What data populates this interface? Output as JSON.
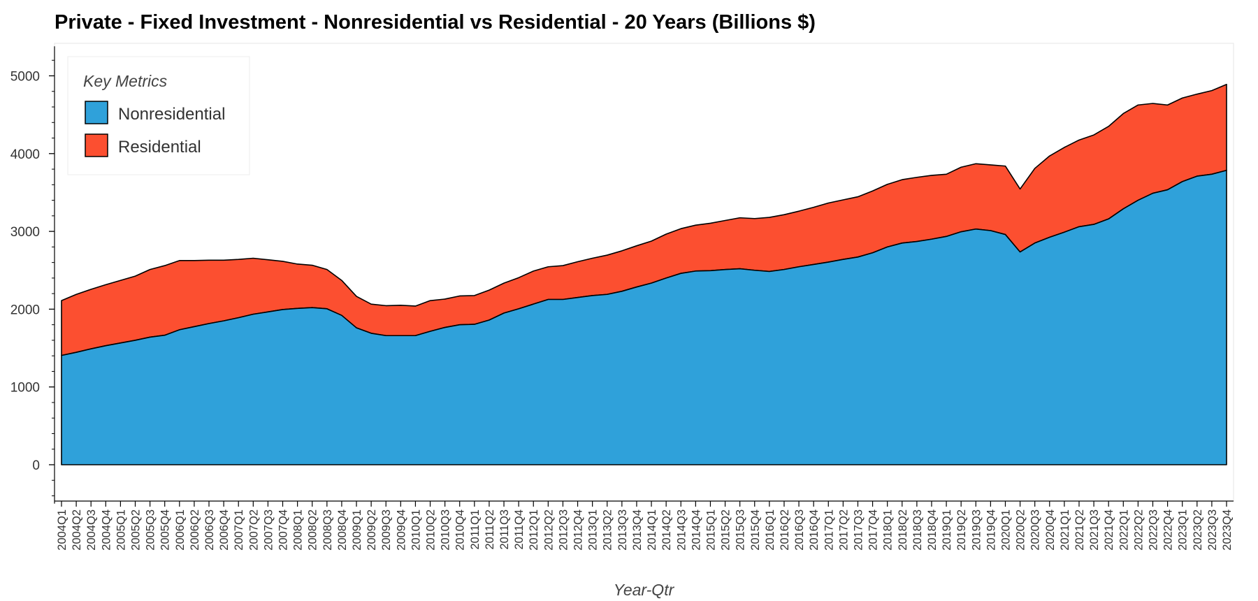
{
  "colors": {
    "nonresidential": "#2FA1DA",
    "residential": "#FC4F30",
    "outline": "#000000"
  },
  "chart_data": {
    "type": "area",
    "stacked": true,
    "title": "Private - Fixed Investment - Nonresidential vs Residential - 20 Years (Billions $)",
    "xlabel": "Year-Qtr",
    "ylabel": "",
    "ylim": [
      -500,
      5380
    ],
    "yticks": [
      0,
      1000,
      2000,
      3000,
      4000,
      5000
    ],
    "grid": false,
    "legend": {
      "title": "Key Metrics",
      "position": "top-left"
    },
    "x": [
      "2004Q1",
      "2004Q2",
      "2004Q3",
      "2004Q4",
      "2005Q1",
      "2005Q2",
      "2005Q3",
      "2005Q4",
      "2006Q1",
      "2006Q2",
      "2006Q3",
      "2006Q4",
      "2007Q1",
      "2007Q2",
      "2007Q3",
      "2007Q4",
      "2008Q1",
      "2008Q2",
      "2008Q3",
      "2008Q4",
      "2009Q1",
      "2009Q2",
      "2009Q3",
      "2009Q4",
      "2010Q1",
      "2010Q2",
      "2010Q3",
      "2010Q4",
      "2011Q1",
      "2011Q2",
      "2011Q3",
      "2011Q4",
      "2012Q1",
      "2012Q2",
      "2012Q3",
      "2012Q4",
      "2013Q1",
      "2013Q2",
      "2013Q3",
      "2013Q4",
      "2014Q1",
      "2014Q2",
      "2014Q3",
      "2014Q4",
      "2015Q1",
      "2015Q2",
      "2015Q3",
      "2015Q4",
      "2016Q1",
      "2016Q2",
      "2016Q3",
      "2016Q4",
      "2017Q1",
      "2017Q2",
      "2017Q3",
      "2017Q4",
      "2018Q1",
      "2018Q2",
      "2018Q3",
      "2018Q4",
      "2019Q1",
      "2019Q2",
      "2019Q3",
      "2019Q4",
      "2020Q1",
      "2020Q2",
      "2020Q3",
      "2020Q4",
      "2021Q1",
      "2021Q2",
      "2021Q3",
      "2021Q4",
      "2022Q1",
      "2022Q2",
      "2022Q3",
      "2022Q4",
      "2023Q1",
      "2023Q2",
      "2023Q3",
      "2023Q4"
    ],
    "series": [
      {
        "name": "Nonresidential",
        "values": [
          1405,
          1445,
          1490,
          1530,
          1565,
          1600,
          1640,
          1665,
          1735,
          1775,
          1815,
          1850,
          1890,
          1935,
          1965,
          1995,
          2010,
          2020,
          2005,
          1920,
          1760,
          1690,
          1660,
          1660,
          1660,
          1715,
          1765,
          1800,
          1805,
          1860,
          1950,
          2005,
          2065,
          2125,
          2125,
          2150,
          2175,
          2190,
          2230,
          2285,
          2335,
          2400,
          2460,
          2490,
          2495,
          2510,
          2520,
          2500,
          2485,
          2510,
          2545,
          2575,
          2605,
          2640,
          2670,
          2725,
          2800,
          2850,
          2870,
          2900,
          2935,
          2995,
          3030,
          3010,
          2960,
          2735,
          2850,
          2925,
          2990,
          3060,
          3090,
          3160,
          3290,
          3400,
          3490,
          3535,
          3640,
          3710,
          3735,
          3785
        ]
      },
      {
        "name": "Residential",
        "values": [
          705,
          745,
          765,
          785,
          805,
          825,
          870,
          895,
          890,
          850,
          815,
          780,
          750,
          720,
          670,
          620,
          570,
          545,
          505,
          450,
          405,
          375,
          385,
          390,
          380,
          395,
          365,
          370,
          370,
          385,
          385,
          400,
          425,
          420,
          435,
          460,
          480,
          505,
          520,
          530,
          540,
          565,
          575,
          590,
          610,
          630,
          655,
          665,
          695,
          705,
          715,
          735,
          760,
          765,
          775,
          795,
          805,
          815,
          825,
          820,
          800,
          830,
          840,
          845,
          880,
          810,
          960,
          1045,
          1090,
          1115,
          1150,
          1190,
          1225,
          1225,
          1155,
          1090,
          1075,
          1055,
          1075,
          1105
        ]
      }
    ]
  }
}
